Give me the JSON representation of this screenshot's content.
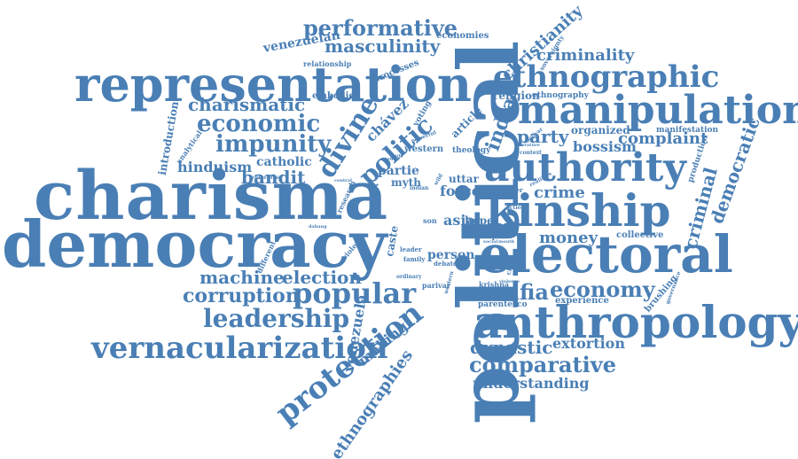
{
  "word_color": "#4a7fb5",
  "background": "#ffffff",
  "words": {
    "political": "political",
    "charisma": "charisma",
    "democracy": "democracy",
    "representation": "representation",
    "anthropology": "anthropology",
    "electoral": "electoral",
    "kinship": "kinship",
    "authority": "authority",
    "manipulation": "manipulation",
    "ethnographic": "ethnographic",
    "vernacularization": "vernacularization",
    "protection": "protection",
    "leadership": "leadership",
    "popular": "popular",
    "performative": "performative",
    "masculinity": "masculinity",
    "economic": "economic",
    "charismatic": "charismatic",
    "impunity": "impunity",
    "divine": "divine",
    "politic": "politic",
    "christianity": "christianity",
    "criminality": "criminality",
    "economy": "economy",
    "mafia": "mafia",
    "corruption": "corruption",
    "machine": "machine",
    "election": "election",
    "comparative": "comparative",
    "understanding": "understanding",
    "dynastic": "dynastic",
    "extortion": "extortion",
    "ethnographies": "ethnographies",
    "making": "making",
    "venezuela": "venezuela",
    "democratic": "democratic",
    "criminal": "criminal",
    "money": "money",
    "party": "party",
    "complaint": "complaint",
    "bossism": "bossism",
    "crime": "crime",
    "bandit": "bandit",
    "catholic": "catholic",
    "hinduism": "hinduism",
    "introduction": "introduction",
    "chavez": "chávez",
    "india": "india",
    "religion": "religion",
    "organized": "organized",
    "manifestation": "manifestation",
    "production": "production",
    "owned": "owned",
    "venezuelan": "venezuelan",
    "economies": "economies",
    "processes": "processes",
    "embodied": "embodied",
    "relationship": "relationship",
    "force": "force",
    "asia": "asia",
    "hope": "hope",
    "uttar": "uttar",
    "partie": "partie",
    "person": "person",
    "myth": "myth",
    "caste": "caste",
    "brushing": "brushing",
    "experience": "experience",
    "parentesco": "parentesco",
    "collective": "collective",
    "explore": "explore",
    "krishna": "krishna",
    "parivar": "parivar",
    "theology": "theology",
    "western": "western",
    "article": "article",
    "sovereignty": "sovereignty",
    "ethnography": "ethnography",
    "voting": "voting",
    "analytical": "analytical",
    "different": "different",
    "violent": "violent",
    "research": "research",
    "enterprise": "enterprise",
    "family": "family",
    "leader": "leader",
    "debate": "debate",
    "power": "power",
    "context": "context",
    "literature": "literature",
    "governance": "governance",
    "violence": "violence",
    "social": "social",
    "mouth": "mouth",
    "ordinary": "ordinary",
    "son": "son",
    "wild": "wild",
    "indian": "indian",
    "dabang": "dabang",
    "chavez_small": "chávez",
    "western_small": "western",
    "powerful": "powerful",
    "action": "action",
    "bolivar": "bolívar",
    "legality": "legality",
    "realities": "realities",
    "central": "central"
  }
}
